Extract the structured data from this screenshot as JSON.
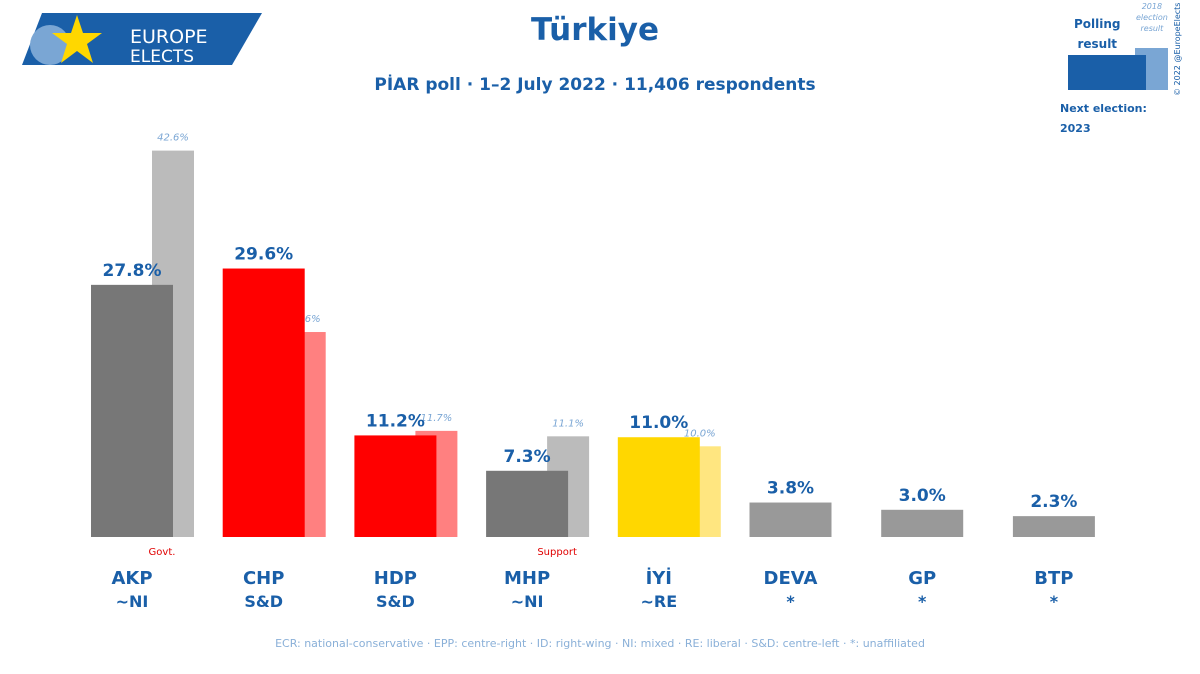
{
  "logo": {
    "line1": "EUROPE",
    "line2": "ELECTS"
  },
  "header": {
    "title": "Türkiye",
    "subtitle": "PİAR poll · 1–2 July 2022 · 11,406 respondents"
  },
  "legend": {
    "polling_label_1": "Polling",
    "polling_label_2": "result",
    "prev_label_1": "2018",
    "prev_label_2": "election",
    "prev_label_3": "result",
    "next_election_label": "Next election:",
    "next_election_year": "2023",
    "copyright": "© 2022 @EuropeElects"
  },
  "footer": "ECR: national-conservative · EPP: centre-right · ID: right-wing · NI: mixed · RE: liberal · S&D: centre-left · *: unaffiliated",
  "colors": {
    "brand": "#1a5fa8",
    "note": "#e00000"
  },
  "chart_data": {
    "type": "bar",
    "title": "Türkiye",
    "ylim": [
      0,
      45
    ],
    "categories": [
      "AKP",
      "CHP",
      "HDP",
      "MHP",
      "İYİ",
      "DEVA",
      "GP",
      "BTP"
    ],
    "groups": [
      "~NI",
      "S&D",
      "S&D",
      "~NI",
      "~RE",
      "*",
      "*",
      "*"
    ],
    "notes": [
      "Govt.",
      "",
      "",
      "Support",
      "",
      "",
      "",
      ""
    ],
    "series": [
      {
        "name": "Polling result",
        "values": [
          27.8,
          29.6,
          11.2,
          7.3,
          11.0,
          3.8,
          3.0,
          2.3
        ],
        "labels": [
          "27.8%",
          "29.6%",
          "11.2%",
          "7.3%",
          "11.0%",
          "3.8%",
          "3.0%",
          "2.3%"
        ]
      },
      {
        "name": "2018 election result",
        "values": [
          42.6,
          22.6,
          11.7,
          11.1,
          10.0,
          null,
          null,
          null
        ],
        "labels": [
          "42.6%",
          "22.6%",
          "11.7%",
          "11.1%",
          "10.0%",
          "",
          "",
          ""
        ]
      }
    ],
    "bar_colors": [
      "#777777",
      "#ff0000",
      "#ff0000",
      "#777777",
      "#ffd700",
      "#999999",
      "#999999",
      "#999999"
    ],
    "prev_colors": [
      "#bbbbbb",
      "#ff8080",
      "#ff8080",
      "#bbbbbb",
      "#ffe680",
      "",
      "",
      ""
    ]
  }
}
